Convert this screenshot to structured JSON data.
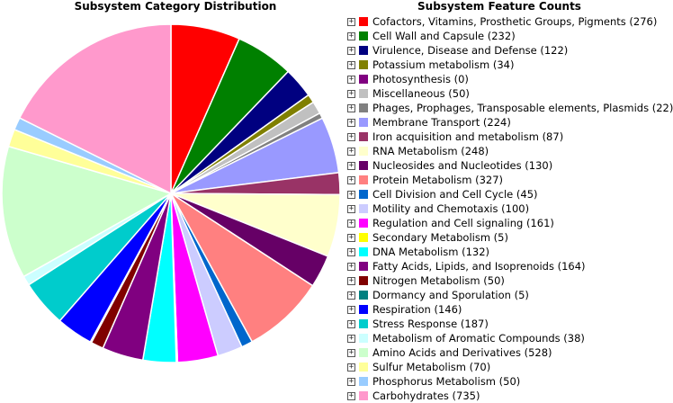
{
  "titles": {
    "pie": "Subsystem Category Distribution",
    "legend": "Subsystem Feature Counts"
  },
  "toggle_glyph": "+",
  "chart_data": {
    "type": "pie",
    "title": "Subsystem Category Distribution",
    "legend_title": "Subsystem Feature Counts",
    "legend_position": "right",
    "slices": [
      {
        "label": "Cofactors, Vitamins, Prosthetic Groups, Pigments (276)",
        "value": 276,
        "color": "#ff0000"
      },
      {
        "label": "Cell Wall and Capsule (232)",
        "value": 232,
        "color": "#008000"
      },
      {
        "label": "Virulence, Disease and Defense (122)",
        "value": 122,
        "color": "#000080"
      },
      {
        "label": "Potassium metabolism (34)",
        "value": 34,
        "color": "#808000"
      },
      {
        "label": "Photosynthesis (0)",
        "value": 0,
        "color": "#800080"
      },
      {
        "label": "Miscellaneous (50)",
        "value": 50,
        "color": "#c0c0c0"
      },
      {
        "label": "Phages, Prophages, Transposable elements, Plasmids (22)",
        "value": 22,
        "color": "#808080"
      },
      {
        "label": "Membrane Transport (224)",
        "value": 224,
        "color": "#9999ff"
      },
      {
        "label": "Iron acquisition and metabolism (87)",
        "value": 87,
        "color": "#993366"
      },
      {
        "label": "RNA Metabolism (248)",
        "value": 248,
        "color": "#ffffcc"
      },
      {
        "label": "Nucleosides and Nucleotides (130)",
        "value": 130,
        "color": "#660066"
      },
      {
        "label": "Protein Metabolism (327)",
        "value": 327,
        "color": "#ff8080"
      },
      {
        "label": "Cell Division and Cell Cycle (45)",
        "value": 45,
        "color": "#0066cc"
      },
      {
        "label": "Motility and Chemotaxis (100)",
        "value": 100,
        "color": "#ccccff"
      },
      {
        "label": "Regulation and Cell signaling (161)",
        "value": 161,
        "color": "#ff00ff"
      },
      {
        "label": "Secondary Metabolism (5)",
        "value": 5,
        "color": "#ffff00"
      },
      {
        "label": "DNA Metabolism (132)",
        "value": 132,
        "color": "#00ffff"
      },
      {
        "label": "Fatty Acids, Lipids, and Isoprenoids (164)",
        "value": 164,
        "color": "#800080"
      },
      {
        "label": "Nitrogen Metabolism (50)",
        "value": 50,
        "color": "#800000"
      },
      {
        "label": "Dormancy and Sporulation (5)",
        "value": 5,
        "color": "#008080"
      },
      {
        "label": "Respiration (146)",
        "value": 146,
        "color": "#0000ff"
      },
      {
        "label": "Stress Response (187)",
        "value": 187,
        "color": "#00cccc"
      },
      {
        "label": "Metabolism of Aromatic Compounds (38)",
        "value": 38,
        "color": "#ccffff"
      },
      {
        "label": "Amino Acids and Derivatives (528)",
        "value": 528,
        "color": "#ccffcc"
      },
      {
        "label": "Sulfur Metabolism (70)",
        "value": 70,
        "color": "#ffff99"
      },
      {
        "label": "Phosphorus Metabolism (50)",
        "value": 50,
        "color": "#99ccff"
      },
      {
        "label": "Carbohydrates (735)",
        "value": 735,
        "color": "#ff99cc"
      }
    ]
  }
}
